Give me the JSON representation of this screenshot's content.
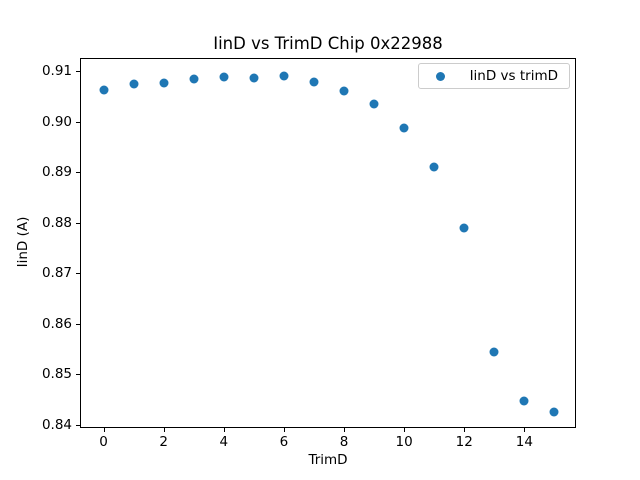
{
  "chart_data": {
    "type": "scatter",
    "title": "IinD vs TrimD Chip 0x22988",
    "xlabel": "TrimD",
    "ylabel": "IinD (A)",
    "series": [
      {
        "name": "IinD vs trimD",
        "color": "#1f77b4",
        "x": [
          0,
          1,
          2,
          3,
          4,
          5,
          6,
          7,
          8,
          9,
          10,
          11,
          12,
          13,
          14,
          15
        ],
        "y": [
          0.9062,
          0.9074,
          0.9077,
          0.9085,
          0.9089,
          0.9087,
          0.9091,
          0.9079,
          0.906,
          0.9035,
          0.8987,
          0.891,
          0.8789,
          0.8544,
          0.8448,
          0.8426
        ]
      }
    ],
    "xlim": [
      -0.75,
      15.75
    ],
    "ylim": [
      0.8392,
      0.9124
    ],
    "xticks": [
      0,
      2,
      4,
      6,
      8,
      10,
      12,
      14
    ],
    "yticks": [
      0.84,
      0.85,
      0.86,
      0.87,
      0.88,
      0.89,
      0.9,
      0.91
    ],
    "ytick_decimals": 2,
    "grid": false,
    "legend_position": "upper right",
    "background_color": "#ffffff",
    "spine_color": "#000000"
  }
}
